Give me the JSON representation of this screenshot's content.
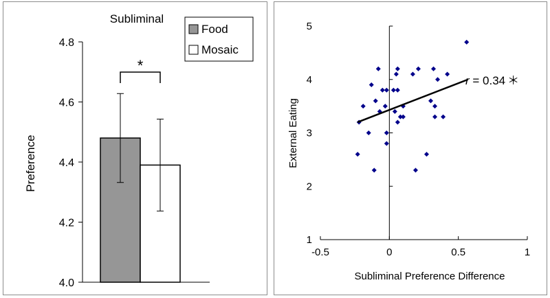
{
  "chart_data": [
    {
      "type": "bar",
      "title": "Subliminal",
      "ylabel": "Preference",
      "ylim": [
        4.0,
        4.8
      ],
      "yticks": [
        "4.0",
        "4.2",
        "4.4",
        "4.6",
        "4.8"
      ],
      "legend_position": "top-right",
      "series": [
        {
          "name": "Food",
          "value": 4.48,
          "error": 0.148,
          "color": "#969696"
        },
        {
          "name": "Mosaic",
          "value": 4.39,
          "error": 0.153,
          "color": "#ffffff"
        }
      ],
      "significance": "*"
    },
    {
      "type": "scatter",
      "xlabel": "Subliminal Preference Difference",
      "ylabel": "External Eating",
      "xlim": [
        -0.5,
        1
      ],
      "ylim": [
        1,
        5
      ],
      "xticks": [
        "-0.5",
        "0",
        "0.5",
        "1"
      ],
      "yticks": [
        "1",
        "2",
        "3",
        "4",
        "5"
      ],
      "point_color": "#00008b",
      "points": [
        [
          -0.23,
          2.6
        ],
        [
          -0.22,
          3.2
        ],
        [
          -0.19,
          3.5
        ],
        [
          -0.15,
          3.0
        ],
        [
          -0.13,
          3.9
        ],
        [
          -0.11,
          2.3
        ],
        [
          -0.1,
          3.6
        ],
        [
          -0.08,
          4.2
        ],
        [
          -0.07,
          3.4
        ],
        [
          -0.05,
          3.8
        ],
        [
          -0.03,
          3.5
        ],
        [
          -0.02,
          3.8
        ],
        [
          -0.02,
          3.0
        ],
        [
          -0.02,
          2.8
        ],
        [
          0.03,
          3.8
        ],
        [
          0.04,
          3.4
        ],
        [
          0.05,
          4.1
        ],
        [
          0.06,
          4.2
        ],
        [
          0.06,
          3.8
        ],
        [
          0.06,
          3.2
        ],
        [
          0.08,
          3.3
        ],
        [
          0.1,
          3.3
        ],
        [
          0.1,
          3.5
        ],
        [
          0.17,
          4.1
        ],
        [
          0.19,
          2.3
        ],
        [
          0.21,
          4.2
        ],
        [
          0.27,
          2.6
        ],
        [
          0.3,
          3.6
        ],
        [
          0.32,
          4.2
        ],
        [
          0.33,
          3.5
        ],
        [
          0.33,
          3.3
        ],
        [
          0.35,
          4.0
        ],
        [
          0.39,
          3.3
        ],
        [
          0.42,
          4.1
        ],
        [
          0.56,
          4.7
        ]
      ],
      "trendline": {
        "x0": -0.23,
        "y0": 3.2,
        "x1": 0.57,
        "y1": 4.0
      },
      "annotation": {
        "r_symbol": "r",
        "text": " = 0.34",
        "star": "＊"
      }
    }
  ]
}
